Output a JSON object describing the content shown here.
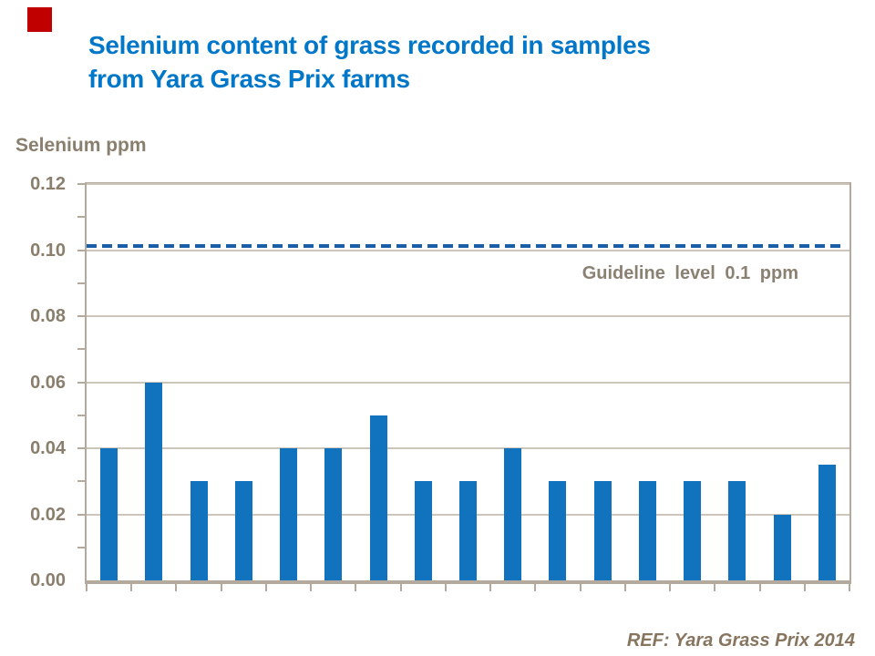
{
  "slide": {
    "title_lines": [
      "Selenium content of grass recorded in samples",
      "from Yara Grass Prix farms"
    ],
    "footer_ref": "REF: Yara Grass Prix 2014",
    "logo": "red-square-logo"
  },
  "colors": {
    "title_blue": "#0077C8",
    "bar_blue": "#1172BD",
    "guideline_blue": "#1B5EA8",
    "axis_gray": "#B3A99C",
    "gridline_gray": "#CDC5B9",
    "label_brown": "#8A7E6D",
    "guide_text": "#8B8172",
    "ref_brown": "#87755F",
    "logo_red": "#C00000"
  },
  "chart_data": {
    "type": "bar",
    "title": "Selenium content of grass recorded in samples from Yara Grass Prix farms",
    "xlabel": "",
    "ylabel": "Selenium ppm",
    "categories": [
      "",
      "",
      "",
      "",
      "",
      "",
      "",
      "",
      "",
      "",
      "",
      "",
      "",
      "",
      "",
      "",
      ""
    ],
    "values": [
      0.04,
      0.06,
      0.03,
      0.03,
      0.04,
      0.04,
      0.05,
      0.03,
      0.03,
      0.04,
      0.03,
      0.03,
      0.03,
      0.03,
      0.03,
      0.02,
      0.035
    ],
    "ylim": [
      0,
      0.12
    ],
    "ytick_step": 0.02,
    "ytick_labels": [
      "0.00",
      "0.02",
      "0.04",
      "0.06",
      "0.08",
      "0.10",
      "0.12"
    ],
    "minor_ytick_step": 0.01,
    "grid": true,
    "legend": false,
    "guideline": {
      "value": 0.1,
      "label": "Guideline level 0.1 ppm"
    }
  }
}
